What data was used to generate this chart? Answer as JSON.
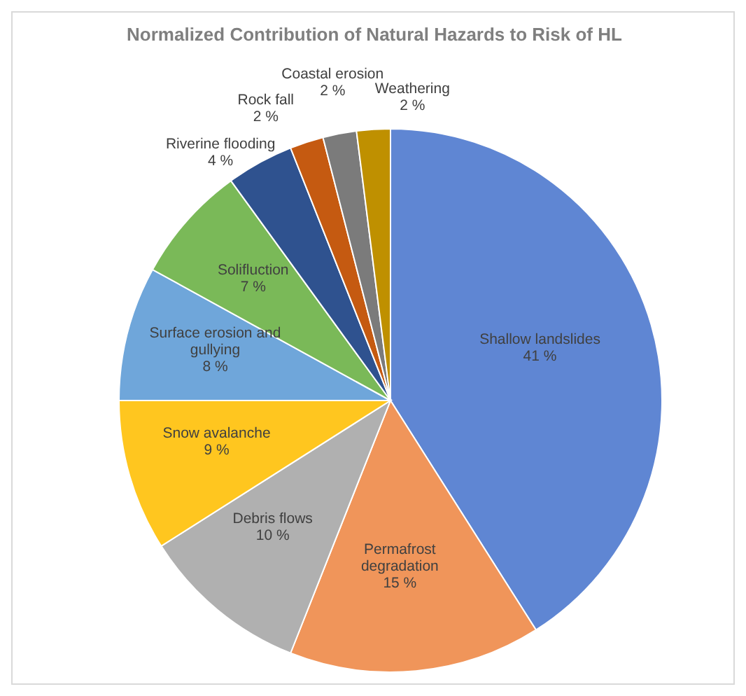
{
  "chart_data": {
    "type": "pie",
    "title": "Normalized Contribution of Natural Hazards to Risk of HL",
    "categories": [
      "Shallow landslides",
      "Permafrost degradation",
      "Debris flows",
      "Snow avalanche",
      "Surface erosion and gullying",
      "Solifluction",
      "Riverine flooding",
      "Rock fall",
      "Coastal erosion",
      "Weathering"
    ],
    "values": [
      41,
      15,
      10,
      9,
      8,
      7,
      4,
      2,
      2,
      2
    ],
    "value_labels": [
      "41 %",
      "15 %",
      "10 %",
      "9 %",
      "8 %",
      "7 %",
      "4 %",
      "2 %",
      "2 %",
      "2 %"
    ],
    "colors": [
      "#5f86d3",
      "#f0955a",
      "#b0b0b0",
      "#ffc61f",
      "#6fa6da",
      "#7ab958",
      "#2f528f",
      "#c55a11",
      "#7b7b7b",
      "#bf9000"
    ]
  }
}
